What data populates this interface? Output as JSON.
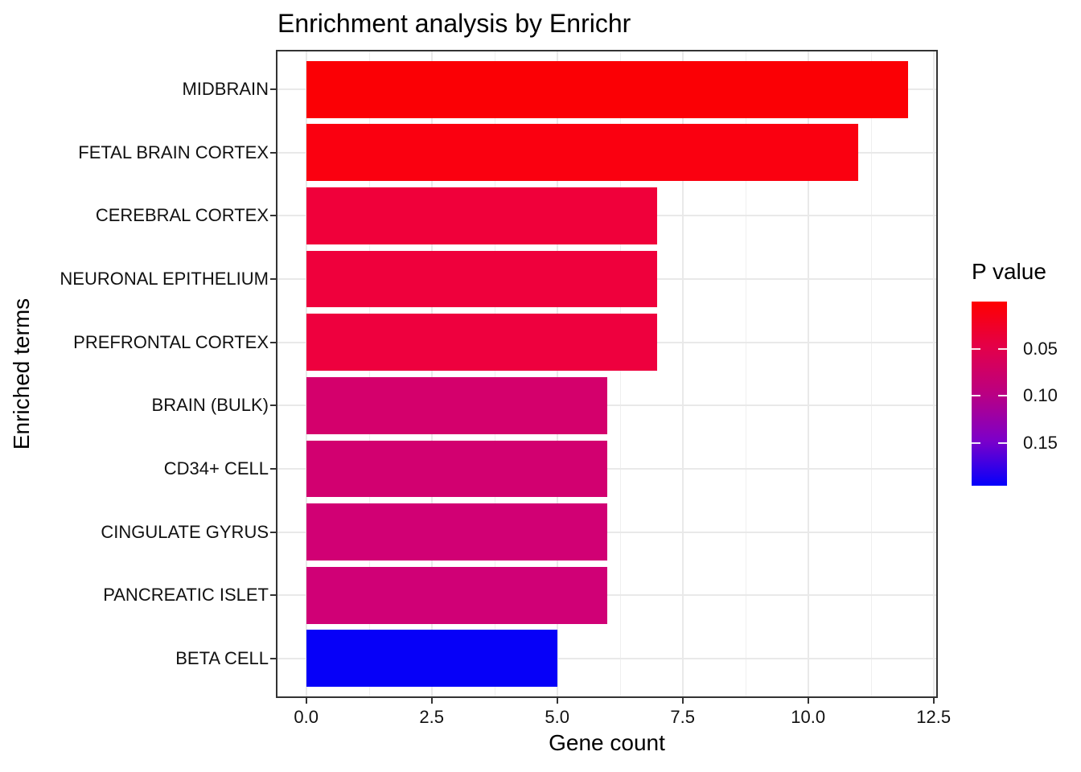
{
  "title": "Enrichment analysis by Enrichr",
  "x_axis": {
    "label": "Gene count"
  },
  "y_axis": {
    "label": "Enriched terms"
  },
  "legend": {
    "title": "P value"
  },
  "chart_data": {
    "type": "bar",
    "orientation": "horizontal",
    "title": "Enrichment analysis by Enrichr",
    "xlabel": "Gene count",
    "ylabel": "Enriched terms",
    "categories": [
      "MIDBRAIN",
      "FETAL BRAIN CORTEX",
      "CEREBRAL CORTEX",
      "NEURONAL EPITHELIUM",
      "PREFRONTAL CORTEX",
      "BRAIN (BULK)",
      "CD34+ CELL",
      "CINGULATE GYRUS",
      "PANCREATIC ISLET",
      "BETA CELL"
    ],
    "values": [
      12,
      11,
      7,
      7,
      7,
      6,
      6,
      6,
      6,
      5
    ],
    "bar_colors": [
      "#FB0005",
      "#FA0010",
      "#F0003A",
      "#EF003C",
      "#EE003E",
      "#D4006C",
      "#D20070",
      "#D10074",
      "#D00076",
      "#0600F8"
    ],
    "xlim": [
      0,
      12.5
    ],
    "x_tick_values": [
      0,
      2.5,
      5,
      7.5,
      10,
      12.5
    ],
    "x_tick_labels": [
      "0.0",
      "2.5",
      "5.0",
      "7.5",
      "10.0",
      "12.5"
    ],
    "x_minor_tick_values": [
      1.25,
      3.75,
      6.25,
      8.75,
      11.25
    ],
    "grid": true,
    "panel_border_color": "#333333",
    "gridline_color": "#e9e9e9",
    "legend": {
      "title": "P value",
      "position": "right",
      "tick_values": [
        0.05,
        0.1,
        0.15
      ],
      "tick_labels": [
        "0.05",
        "0.10",
        "0.15"
      ],
      "domain": [
        0,
        0.195
      ],
      "low_color": "#FF0000",
      "high_color": "#0000FF",
      "gradient_stops": [
        "#FF0000",
        "#E3004A",
        "#BA0082",
        "#7E00C8",
        "#0500FB"
      ]
    }
  }
}
